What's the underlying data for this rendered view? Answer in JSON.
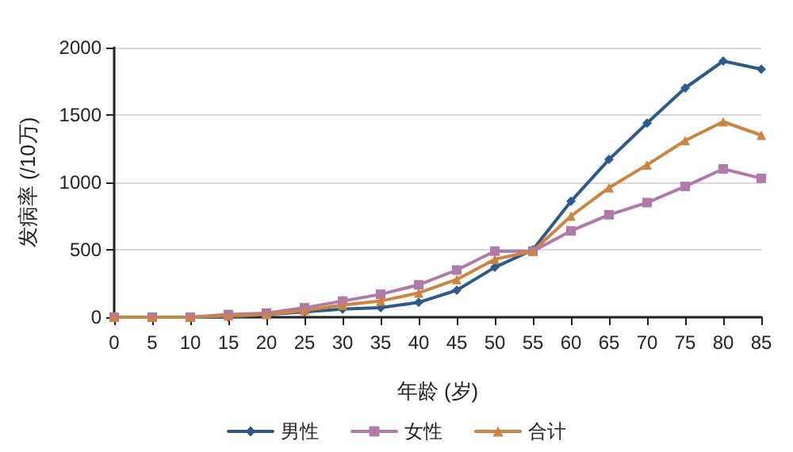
{
  "chart_data": {
    "type": "line",
    "xlabel": "年龄 (岁)",
    "ylabel": "发病率 (/10万)",
    "categories": [
      "0",
      "5",
      "10",
      "15",
      "20",
      "25",
      "30",
      "35",
      "40",
      "45",
      "50",
      "55",
      "60",
      "65",
      "70",
      "75",
      "80",
      "85"
    ],
    "series": [
      {
        "name": "男性",
        "color": "#2e5a87",
        "marker": "diamond",
        "values": [
          null,
          null,
          0,
          0,
          20,
          40,
          60,
          70,
          110,
          200,
          370,
          500,
          860,
          1170,
          1440,
          1700,
          1900,
          1840
        ]
      },
      {
        "name": "女性",
        "color": "#b07aa8",
        "marker": "square",
        "values": [
          0,
          0,
          0,
          20,
          30,
          70,
          120,
          170,
          240,
          350,
          490,
          490,
          640,
          760,
          850,
          970,
          1100,
          1030
        ]
      },
      {
        "name": "合计",
        "color": "#cc8440",
        "marker": "triangle",
        "values": [
          0,
          0,
          0,
          10,
          20,
          50,
          90,
          120,
          180,
          280,
          430,
          490,
          750,
          960,
          1130,
          1310,
          1450,
          1350
        ]
      }
    ],
    "ylim": [
      0,
      2000
    ],
    "yticks": [
      0,
      500,
      1000,
      1500,
      2000
    ],
    "grid": "y",
    "legend": "bottom",
    "line_style": "solid"
  }
}
